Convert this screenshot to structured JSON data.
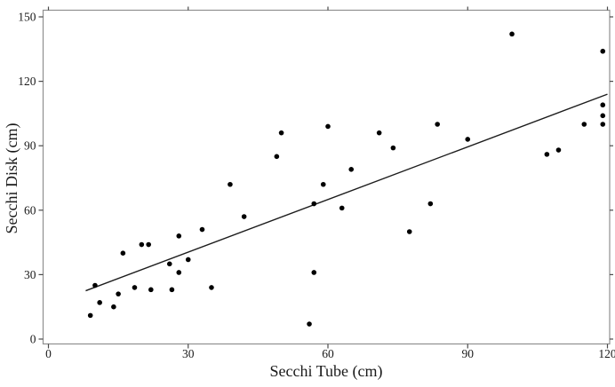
{
  "chart_data": {
    "type": "scatter",
    "title": "",
    "xlabel": "Secchi Tube (cm)",
    "ylabel": "Secchi Disk (cm)",
    "xlim": [
      0,
      120
    ],
    "ylim": [
      0,
      150
    ],
    "x_ticks": [
      "0",
      "30",
      "60",
      "90",
      "120"
    ],
    "y_ticks": [
      "0",
      "30",
      "60",
      "90",
      "120",
      "150"
    ],
    "x_tick_values": [
      0,
      30,
      60,
      90,
      120
    ],
    "y_tick_values": [
      0,
      30,
      60,
      90,
      120,
      150
    ],
    "grid": false,
    "legend": false,
    "frame": "full box with mirrored outward ticks",
    "marker": "filled black circle",
    "n_points": 42,
    "series": [
      {
        "name": "observations",
        "points": [
          [
            9,
            11
          ],
          [
            10,
            25
          ],
          [
            11,
            17
          ],
          [
            14,
            15
          ],
          [
            15,
            21
          ],
          [
            16,
            40
          ],
          [
            18.5,
            24
          ],
          [
            20,
            44
          ],
          [
            21.5,
            44
          ],
          [
            22,
            23
          ],
          [
            26,
            35
          ],
          [
            26.5,
            23
          ],
          [
            28,
            31
          ],
          [
            28,
            48
          ],
          [
            30,
            37
          ],
          [
            33,
            51
          ],
          [
            35,
            24
          ],
          [
            39,
            72
          ],
          [
            42,
            57
          ],
          [
            49,
            85
          ],
          [
            50,
            96
          ],
          [
            56,
            7
          ],
          [
            57,
            31
          ],
          [
            57,
            63
          ],
          [
            59,
            72
          ],
          [
            60,
            99
          ],
          [
            63,
            61
          ],
          [
            65,
            79
          ],
          [
            71,
            96
          ],
          [
            74,
            89
          ],
          [
            77.5,
            50
          ],
          [
            82,
            63
          ],
          [
            83.5,
            100
          ],
          [
            90,
            93
          ],
          [
            99.5,
            142
          ],
          [
            107,
            86
          ],
          [
            109.5,
            88
          ],
          [
            115,
            100
          ],
          [
            119,
            100
          ],
          [
            119,
            104
          ],
          [
            119,
            109
          ],
          [
            119,
            134
          ]
        ]
      }
    ],
    "trend_line": {
      "x1": 8,
      "y1": 22.5,
      "x2": 120,
      "y2": 114,
      "slope_estimate": 0.82,
      "intercept_estimate": 16
    },
    "colors": {
      "background": "#ffffff",
      "points": "#000000",
      "trend_line": "#1c1c1c",
      "frame": "#8f8f8f",
      "tick": "#4a4a4a",
      "text": "#1a1a1a"
    }
  }
}
